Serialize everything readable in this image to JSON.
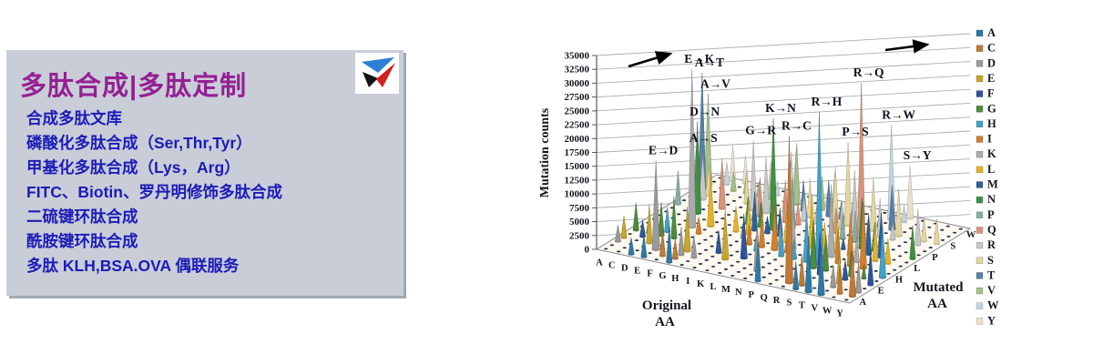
{
  "panel": {
    "title": "多肽合成|多肽定制",
    "title_color": "#952093",
    "bg_color": "#c9cdd7",
    "item_color": "#1c1cb8",
    "items": [
      "合成多肽文库",
      "磷酸化多肽合成（Ser,Thr,Tyr）",
      "甲基化多肽合成（Lys，Arg）",
      "FITC、Biotin、罗丹明修饰多肽合成",
      "二硫键环肽合成",
      "酰胺键环肽合成",
      "多肽 KLH,BSA.OVA 偶联服务"
    ],
    "logo_colors": {
      "blue": "#2b7fd4",
      "black": "#141414",
      "red": "#d42020"
    }
  },
  "chart_data": {
    "type": "3d-cone",
    "ylabel": "Mutation counts",
    "xlabel_line1": "Original",
    "xlabel_line2": "AA",
    "zlabel_line1": "Mutated",
    "zlabel_line2": "AA",
    "ylim": [
      0,
      35000
    ],
    "yticks": [
      0,
      2500,
      5000,
      7500,
      10000,
      12500,
      15000,
      17500,
      20000,
      22500,
      25000,
      27500,
      30000,
      32500,
      35000
    ],
    "categories_original": [
      "A",
      "C",
      "D",
      "E",
      "F",
      "G",
      "H",
      "I",
      "K",
      "L",
      "M",
      "N",
      "P",
      "Q",
      "R",
      "S",
      "T",
      "V",
      "W",
      "Y"
    ],
    "categories_mutated": [
      "A",
      "C",
      "D",
      "E",
      "F",
      "G",
      "H",
      "I",
      "K",
      "L",
      "M",
      "N",
      "P",
      "Q",
      "R",
      "S",
      "T",
      "V",
      "W",
      "Y"
    ],
    "mutated_axis_shown_labels": [
      "A",
      "E",
      "H",
      "L",
      "P",
      "S",
      "W"
    ],
    "legend_position": "right",
    "legend": [
      {
        "label": "A",
        "color": "#2d7aa8"
      },
      {
        "label": "C",
        "color": "#bf7a38"
      },
      {
        "label": "D",
        "color": "#9a9a9a"
      },
      {
        "label": "E",
        "color": "#c6a62e"
      },
      {
        "label": "F",
        "color": "#2f5597"
      },
      {
        "label": "G",
        "color": "#4e8a3e"
      },
      {
        "label": "H",
        "color": "#44a0c4"
      },
      {
        "label": "I",
        "color": "#d08030"
      },
      {
        "label": "K",
        "color": "#ababab"
      },
      {
        "label": "L",
        "color": "#e3b32a"
      },
      {
        "label": "M",
        "color": "#2e5f98"
      },
      {
        "label": "N",
        "color": "#3f9043"
      },
      {
        "label": "P",
        "color": "#8aaca6"
      },
      {
        "label": "Q",
        "color": "#d8937a"
      },
      {
        "label": "R",
        "color": "#c6c6c6"
      },
      {
        "label": "S",
        "color": "#e3d5a1"
      },
      {
        "label": "T",
        "color": "#5a80a5"
      },
      {
        "label": "V",
        "color": "#a2c089"
      },
      {
        "label": "W",
        "color": "#c5d4dc"
      },
      {
        "label": "Y",
        "color": "#e9dfcd"
      }
    ],
    "labeled_peaks": [
      {
        "label": "E→K",
        "from": "E",
        "to": "K"
      },
      {
        "label": "A→T",
        "from": "A",
        "to": "T"
      },
      {
        "label": "A→V",
        "from": "A",
        "to": "V"
      },
      {
        "label": "R→Q",
        "from": "R",
        "to": "Q"
      },
      {
        "label": "R→H",
        "from": "R",
        "to": "H"
      },
      {
        "label": "K→N",
        "from": "K",
        "to": "N"
      },
      {
        "label": "D→N",
        "from": "D",
        "to": "N"
      },
      {
        "label": "R→C",
        "from": "R",
        "to": "C"
      },
      {
        "label": "G→R",
        "from": "G",
        "to": "R"
      },
      {
        "label": "P→S",
        "from": "P",
        "to": "S"
      },
      {
        "label": "R→W",
        "from": "R",
        "to": "W"
      },
      {
        "label": "A→S",
        "from": "A",
        "to": "S"
      },
      {
        "label": "E→D",
        "from": "E",
        "to": "D"
      },
      {
        "label": "S→Y",
        "from": "S",
        "to": "Y"
      }
    ],
    "mutations": [
      [
        "E",
        "K",
        28500
      ],
      [
        "A",
        "T",
        21000
      ],
      [
        "A",
        "V",
        16500
      ],
      [
        "R",
        "Q",
        28000
      ],
      [
        "R",
        "H",
        27500
      ],
      [
        "K",
        "N",
        20000
      ],
      [
        "D",
        "N",
        16500
      ],
      [
        "R",
        "C",
        26500
      ],
      [
        "G",
        "R",
        12500
      ],
      [
        "P",
        "S",
        15000
      ],
      [
        "R",
        "W",
        17000
      ],
      [
        "A",
        "S",
        8000
      ],
      [
        "E",
        "D",
        16000
      ],
      [
        "S",
        "Y",
        9500
      ],
      [
        "A",
        "P",
        6000
      ],
      [
        "A",
        "G",
        5000
      ],
      [
        "A",
        "E",
        4000
      ],
      [
        "A",
        "D",
        3000
      ],
      [
        "C",
        "R",
        8000
      ],
      [
        "C",
        "S",
        5500
      ],
      [
        "C",
        "W",
        4000
      ],
      [
        "C",
        "Y",
        6500
      ],
      [
        "C",
        "F",
        3000
      ],
      [
        "C",
        "G",
        2500
      ],
      [
        "D",
        "E",
        7000
      ],
      [
        "D",
        "G",
        6000
      ],
      [
        "D",
        "H",
        4500
      ],
      [
        "D",
        "Y",
        5000
      ],
      [
        "D",
        "V",
        3500
      ],
      [
        "D",
        "A",
        3000
      ],
      [
        "E",
        "Q",
        9000
      ],
      [
        "E",
        "G",
        7500
      ],
      [
        "E",
        "A",
        4000
      ],
      [
        "E",
        "V",
        3000
      ],
      [
        "F",
        "L",
        9500
      ],
      [
        "F",
        "S",
        6000
      ],
      [
        "F",
        "Y",
        5000
      ],
      [
        "F",
        "C",
        4500
      ],
      [
        "F",
        "V",
        2500
      ],
      [
        "F",
        "I",
        3000
      ],
      [
        "G",
        "E",
        8000
      ],
      [
        "G",
        "A",
        6500
      ],
      [
        "G",
        "V",
        5500
      ],
      [
        "G",
        "D",
        5000
      ],
      [
        "G",
        "S",
        4500
      ],
      [
        "G",
        "C",
        3500
      ],
      [
        "G",
        "W",
        2500
      ],
      [
        "H",
        "R",
        10000
      ],
      [
        "H",
        "Q",
        7000
      ],
      [
        "H",
        "Y",
        8000
      ],
      [
        "H",
        "N",
        5000
      ],
      [
        "H",
        "D",
        4000
      ],
      [
        "H",
        "L",
        4500
      ],
      [
        "H",
        "P",
        3000
      ],
      [
        "I",
        "V",
        11000
      ],
      [
        "I",
        "T",
        8500
      ],
      [
        "I",
        "M",
        7000
      ],
      [
        "I",
        "L",
        6000
      ],
      [
        "I",
        "N",
        4500
      ],
      [
        "I",
        "S",
        3500
      ],
      [
        "I",
        "F",
        4000
      ],
      [
        "I",
        "K",
        2500
      ],
      [
        "K",
        "R",
        12000
      ],
      [
        "K",
        "E",
        9000
      ],
      [
        "K",
        "Q",
        7500
      ],
      [
        "K",
        "T",
        5500
      ],
      [
        "K",
        "I",
        3500
      ],
      [
        "K",
        "M",
        3000
      ],
      [
        "L",
        "P",
        9000
      ],
      [
        "L",
        "S",
        7000
      ],
      [
        "L",
        "F",
        8000
      ],
      [
        "L",
        "I",
        6500
      ],
      [
        "L",
        "V",
        6000
      ],
      [
        "L",
        "M",
        5000
      ],
      [
        "L",
        "W",
        3000
      ],
      [
        "L",
        "Q",
        4000
      ],
      [
        "L",
        "R",
        4500
      ],
      [
        "L",
        "H",
        2500
      ],
      [
        "M",
        "I",
        8000
      ],
      [
        "M",
        "V",
        7000
      ],
      [
        "M",
        "T",
        6500
      ],
      [
        "M",
        "L",
        5500
      ],
      [
        "M",
        "K",
        4000
      ],
      [
        "M",
        "R",
        3000
      ],
      [
        "N",
        "S",
        10000
      ],
      [
        "N",
        "D",
        8500
      ],
      [
        "N",
        "K",
        7000
      ],
      [
        "N",
        "H",
        5500
      ],
      [
        "N",
        "Y",
        4500
      ],
      [
        "N",
        "I",
        3500
      ],
      [
        "N",
        "T",
        3000
      ],
      [
        "P",
        "L",
        9500
      ],
      [
        "P",
        "A",
        7000
      ],
      [
        "P",
        "T",
        6000
      ],
      [
        "P",
        "Q",
        4500
      ],
      [
        "P",
        "R",
        5000
      ],
      [
        "P",
        "H",
        3500
      ],
      [
        "Q",
        "R",
        11000
      ],
      [
        "Q",
        "K",
        8000
      ],
      [
        "Q",
        "H",
        9000
      ],
      [
        "Q",
        "E",
        6500
      ],
      [
        "Q",
        "P",
        4500
      ],
      [
        "Q",
        "L",
        5000
      ],
      [
        "R",
        "K",
        13000
      ],
      [
        "R",
        "S",
        9500
      ],
      [
        "R",
        "G",
        8500
      ],
      [
        "R",
        "L",
        7000
      ],
      [
        "R",
        "P",
        5500
      ],
      [
        "R",
        "I",
        3000
      ],
      [
        "R",
        "T",
        2500
      ],
      [
        "R",
        "M",
        2000
      ],
      [
        "S",
        "N",
        9000
      ],
      [
        "S",
        "T",
        8000
      ],
      [
        "S",
        "I",
        6000
      ],
      [
        "S",
        "R",
        7000
      ],
      [
        "S",
        "G",
        6500
      ],
      [
        "S",
        "C",
        5500
      ],
      [
        "S",
        "A",
        5000
      ],
      [
        "S",
        "P",
        4500
      ],
      [
        "S",
        "L",
        6000
      ],
      [
        "S",
        "F",
        7500
      ],
      [
        "S",
        "W",
        3000
      ],
      [
        "T",
        "A",
        10000
      ],
      [
        "T",
        "I",
        9500
      ],
      [
        "T",
        "S",
        8500
      ],
      [
        "T",
        "M",
        7500
      ],
      [
        "T",
        "N",
        5000
      ],
      [
        "T",
        "K",
        4500
      ],
      [
        "T",
        "P",
        4000
      ],
      [
        "T",
        "R",
        3000
      ],
      [
        "V",
        "I",
        12000
      ],
      [
        "V",
        "A",
        9000
      ],
      [
        "V",
        "M",
        8000
      ],
      [
        "V",
        "L",
        7000
      ],
      [
        "V",
        "E",
        5500
      ],
      [
        "V",
        "D",
        4000
      ],
      [
        "V",
        "G",
        4500
      ],
      [
        "V",
        "F",
        3500
      ],
      [
        "W",
        "R",
        6500
      ],
      [
        "W",
        "C",
        5000
      ],
      [
        "W",
        "S",
        4000
      ],
      [
        "W",
        "L",
        4500
      ],
      [
        "W",
        "G",
        2500
      ],
      [
        "Y",
        "H",
        9000
      ],
      [
        "Y",
        "C",
        8000
      ],
      [
        "Y",
        "N",
        6000
      ],
      [
        "Y",
        "D",
        5500
      ],
      [
        "Y",
        "F",
        6500
      ],
      [
        "Y",
        "S",
        4500
      ]
    ]
  }
}
